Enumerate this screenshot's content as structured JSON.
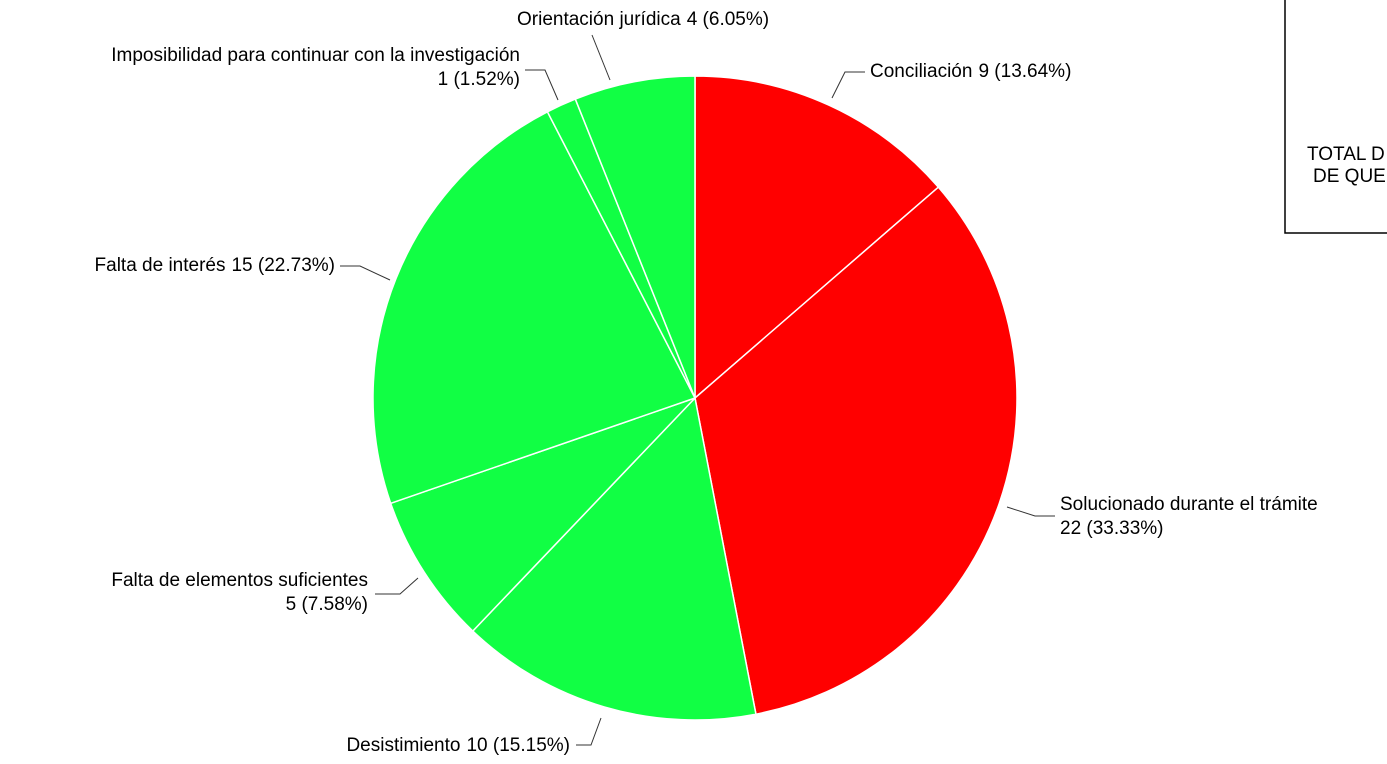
{
  "chart_data": {
    "type": "pie",
    "categories": [
      "Conciliación",
      "Solucionado durante el trámite",
      "Desistimiento",
      "Falta de elementos suficientes",
      "Falta de interés",
      "Imposibilidad para continuar con la investigación",
      "Orientación jurídica"
    ],
    "values": [
      9,
      22,
      10,
      5,
      15,
      1,
      4
    ],
    "value_labels": [
      "9 (13.64%)",
      "22 (33.33%)",
      "10 (15.15%)",
      "5 (7.58%)",
      "15 (22.73%)",
      "1 (1.52%)",
      "4 (6.05%)"
    ],
    "colors": [
      "#ff0000",
      "#ff0000",
      "#11ff44",
      "#11ff44",
      "#11ff44",
      "#11ff44",
      "#11ff44"
    ]
  },
  "side_box": {
    "lines": [
      "TOTAL D",
      "DE QUE"
    ]
  }
}
